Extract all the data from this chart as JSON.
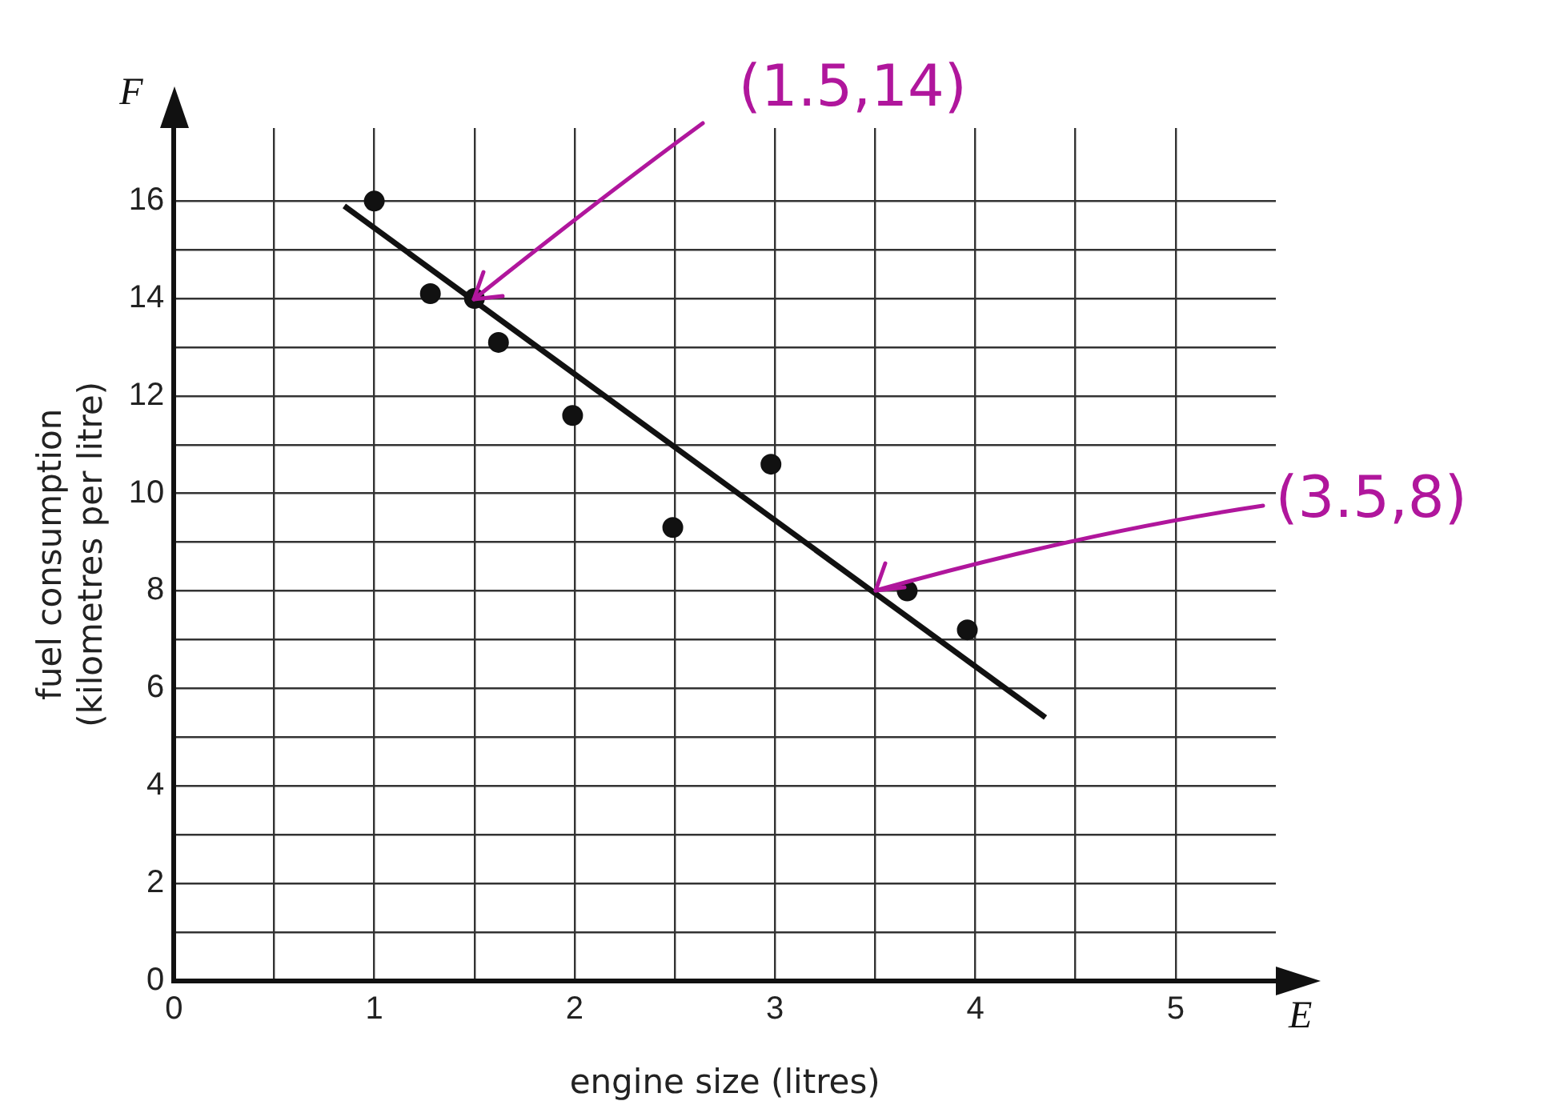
{
  "chart_data": {
    "type": "scatter",
    "xlabel": "engine size (litres)",
    "ylabel": "fuel consumption\n(kilometres per litre)",
    "x": [
      1,
      1.28,
      1.5,
      1.62,
      1.99,
      2.49,
      2.98,
      3.66,
      3.96
    ],
    "series": [
      {
        "type": "scatter",
        "color": "#111111",
        "values": [
          16,
          14.1,
          14,
          13.1,
          11.6,
          9.3,
          10.6,
          8.0,
          7.2
        ]
      },
      {
        "type": "line",
        "color": "#111111",
        "x": [
          0.85,
          4.35
        ],
        "values": [
          15.9,
          5.4
        ]
      }
    ],
    "xlim": [
      0,
      5.5
    ],
    "ylim": [
      0,
      17.5
    ],
    "xticks": [
      0,
      {
        "value": 0.5,
        "label": null
      },
      1,
      {
        "value": 1.5,
        "label": null
      },
      2,
      {
        "value": 2.5,
        "label": null
      },
      3,
      {
        "value": 3.5,
        "label": null
      },
      4,
      {
        "value": 4.5,
        "label": null
      },
      5
    ],
    "yticks": [
      0,
      {
        "value": 1,
        "label": null
      },
      2,
      {
        "value": 3,
        "label": null
      },
      4,
      {
        "value": 5,
        "label": null
      },
      6,
      {
        "value": 7,
        "label": null
      },
      8,
      {
        "value": 9,
        "label": null
      },
      10,
      {
        "value": 11,
        "label": null
      },
      12,
      {
        "value": 13,
        "label": null
      },
      14,
      {
        "value": 15,
        "label": null
      },
      16
    ],
    "annotations": [
      "F",
      "E",
      {
        "text": "(1.5,14)",
        "x": 1.5,
        "y": 14
      },
      {
        "text": "(3.5,8)",
        "x": 3.5,
        "y": 8
      }
    ],
    "grid": true,
    "legend": false,
    "line_style": "solid"
  }
}
